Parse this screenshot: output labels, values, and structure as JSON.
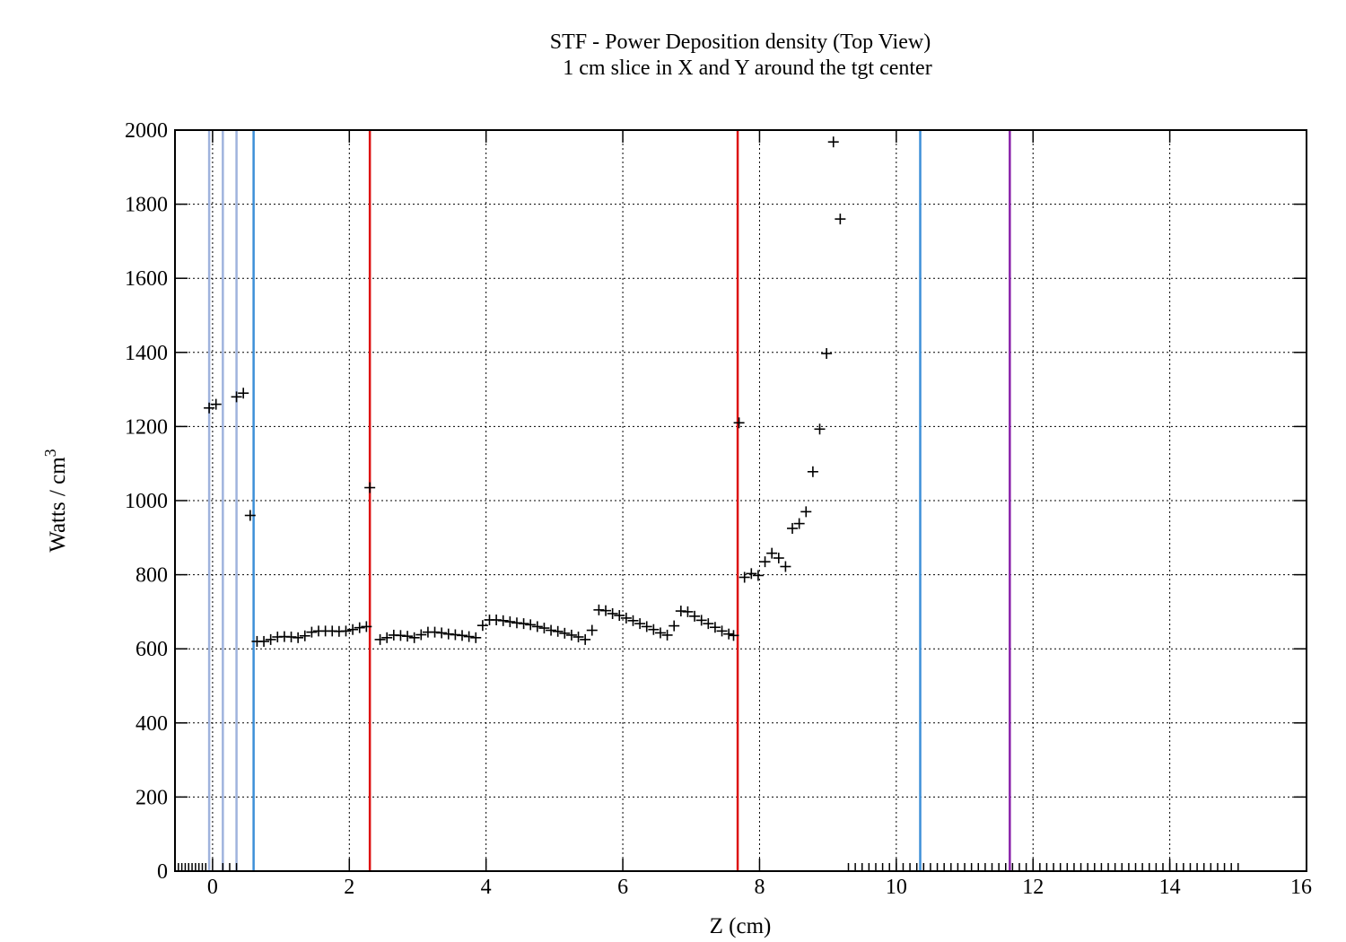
{
  "chart_data": {
    "type": "scatter",
    "title": "STF - Power Deposition density (Top View)",
    "subtitle": "1 cm slice in X and Y around the tgt center",
    "xlabel": "Z (cm)",
    "ylabel_main": "Watts  / cm",
    "ylabel_sup": "3",
    "xlim": [
      -0.55,
      16
    ],
    "ylim": [
      0,
      2000
    ],
    "xticks": [
      0,
      2,
      4,
      6,
      8,
      10,
      12,
      14,
      16
    ],
    "yticks": [
      0,
      200,
      400,
      600,
      800,
      1000,
      1200,
      1400,
      1600,
      1800,
      2000
    ],
    "xtick_labels": [
      "0",
      "2",
      "4",
      "6",
      "8",
      "10",
      "12",
      "14",
      "16"
    ],
    "ytick_labels": [
      "0",
      "200",
      "400",
      "600",
      "800",
      "1000",
      "1200",
      "1400",
      "1600",
      "1800",
      "2000"
    ],
    "grid": true,
    "marker": "plus",
    "vertical_lines": [
      {
        "x": -0.05,
        "color": "#9fb3dd"
      },
      {
        "x": 0.15,
        "color": "#9fb3dd"
      },
      {
        "x": 0.35,
        "color": "#9fb3dd"
      },
      {
        "x": 0.6,
        "color": "#3d8fd8"
      },
      {
        "x": 2.3,
        "color": "#dd1111"
      },
      {
        "x": 7.68,
        "color": "#dd1111"
      },
      {
        "x": 10.35,
        "color": "#3d8fd8"
      },
      {
        "x": 11.66,
        "color": "#8a22aa"
      }
    ],
    "x_markers": [
      -0.5,
      -0.45,
      -0.4,
      -0.35,
      -0.3,
      -0.25,
      -0.2,
      -0.15,
      -0.1,
      0.15,
      0.25,
      0.35,
      9.3,
      9.4,
      9.5,
      9.6,
      9.7,
      9.8,
      9.9,
      10.0,
      10.1,
      10.2,
      10.3,
      10.4,
      10.5,
      10.6,
      10.7,
      10.8,
      10.9,
      11.0,
      11.1,
      11.2,
      11.3,
      11.4,
      11.5,
      11.6,
      11.7,
      11.8,
      11.9,
      12.0,
      12.1,
      12.2,
      12.3,
      12.4,
      12.5,
      12.6,
      12.7,
      12.8,
      12.9,
      13.0,
      13.1,
      13.2,
      13.3,
      13.4,
      13.5,
      13.6,
      13.7,
      13.8,
      13.9,
      14.0,
      14.1,
      14.2,
      14.3,
      14.4,
      14.5,
      14.6,
      14.7,
      14.8,
      14.9,
      15.0
    ],
    "points": [
      [
        -0.05,
        1250
      ],
      [
        0.05,
        1260
      ],
      [
        0.35,
        1280
      ],
      [
        0.45,
        1290
      ],
      [
        0.55,
        960
      ],
      [
        0.65,
        620
      ],
      [
        0.75,
        620
      ],
      [
        0.85,
        625
      ],
      [
        0.95,
        632
      ],
      [
        1.05,
        633
      ],
      [
        1.15,
        632
      ],
      [
        1.25,
        630
      ],
      [
        1.35,
        635
      ],
      [
        1.45,
        645
      ],
      [
        1.55,
        648
      ],
      [
        1.65,
        648
      ],
      [
        1.75,
        648
      ],
      [
        1.85,
        647
      ],
      [
        1.95,
        648
      ],
      [
        2.05,
        652
      ],
      [
        2.15,
        657
      ],
      [
        2.25,
        660
      ],
      [
        2.3,
        1035
      ],
      [
        2.45,
        625
      ],
      [
        2.55,
        630
      ],
      [
        2.65,
        637
      ],
      [
        2.75,
        636
      ],
      [
        2.85,
        634
      ],
      [
        2.95,
        630
      ],
      [
        3.05,
        638
      ],
      [
        3.15,
        645
      ],
      [
        3.25,
        645
      ],
      [
        3.35,
        643
      ],
      [
        3.45,
        640
      ],
      [
        3.55,
        638
      ],
      [
        3.65,
        636
      ],
      [
        3.75,
        633
      ],
      [
        3.85,
        630
      ],
      [
        3.95,
        663
      ],
      [
        4.05,
        678
      ],
      [
        4.15,
        678
      ],
      [
        4.25,
        676
      ],
      [
        4.35,
        673
      ],
      [
        4.45,
        670
      ],
      [
        4.55,
        668
      ],
      [
        4.65,
        665
      ],
      [
        4.75,
        660
      ],
      [
        4.85,
        656
      ],
      [
        4.95,
        650
      ],
      [
        5.05,
        647
      ],
      [
        5.15,
        642
      ],
      [
        5.25,
        637
      ],
      [
        5.35,
        632
      ],
      [
        5.45,
        625
      ],
      [
        5.55,
        650
      ],
      [
        5.65,
        705
      ],
      [
        5.75,
        703
      ],
      [
        5.85,
        695
      ],
      [
        5.95,
        690
      ],
      [
        6.05,
        683
      ],
      [
        6.15,
        676
      ],
      [
        6.25,
        668
      ],
      [
        6.35,
        660
      ],
      [
        6.45,
        652
      ],
      [
        6.55,
        643
      ],
      [
        6.65,
        637
      ],
      [
        6.75,
        662
      ],
      [
        6.85,
        702
      ],
      [
        6.95,
        700
      ],
      [
        7.05,
        688
      ],
      [
        7.15,
        677
      ],
      [
        7.25,
        668
      ],
      [
        7.35,
        658
      ],
      [
        7.45,
        648
      ],
      [
        7.55,
        640
      ],
      [
        7.62,
        636
      ],
      [
        7.7,
        1210
      ],
      [
        7.78,
        793
      ],
      [
        7.88,
        803
      ],
      [
        7.98,
        798
      ],
      [
        8.08,
        835
      ],
      [
        8.18,
        858
      ],
      [
        8.28,
        845
      ],
      [
        8.38,
        822
      ],
      [
        8.48,
        925
      ],
      [
        8.58,
        938
      ],
      [
        8.68,
        970
      ],
      [
        8.78,
        1078
      ],
      [
        8.88,
        1193
      ],
      [
        8.98,
        1397
      ],
      [
        9.08,
        1968
      ],
      [
        9.18,
        1760
      ]
    ]
  }
}
